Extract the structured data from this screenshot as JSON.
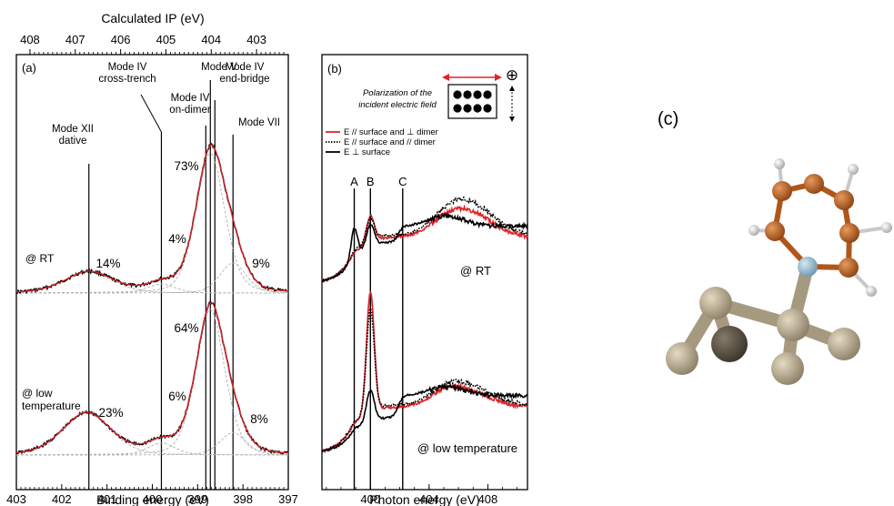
{
  "panel_c": {
    "label": "(c)",
    "colors": {
      "carbon": "#c0601e",
      "hydrogen": "#f2f2f2",
      "nitrogen": "#9fc3d6",
      "silicon": "#bfb297",
      "silicon_dark": "#5a5246"
    }
  },
  "chart_data": [
    {
      "type": "line",
      "panel": "(a)",
      "xlabel": "Binding energy (eV)",
      "top_axis_label": "Calculated IP (eV)",
      "xlim": [
        403,
        397
      ],
      "x_ticks": [
        "403",
        "402",
        "401",
        "400",
        "399",
        "398",
        "397"
      ],
      "top_xlim": [
        408.3,
        402.3
      ],
      "top_ticks": [
        "408",
        "407",
        "406",
        "405",
        "404",
        "403"
      ],
      "modes": [
        {
          "label_lines": [
            "Mode XII",
            "dative"
          ],
          "be": 401.4
        },
        {
          "label_lines": [
            "Mode IV",
            "cross-trench"
          ],
          "be": 399.8
        },
        {
          "label_lines": [
            "Mode IV",
            "on-dimer"
          ],
          "be": 398.82
        },
        {
          "label_lines": [
            "Mode V"
          ],
          "be": 398.72
        },
        {
          "label_lines": [
            "Mode IV",
            "end-bridge"
          ],
          "be": 398.62
        },
        {
          "label_lines": [
            "Mode VII"
          ],
          "be": 398.22
        }
      ],
      "conditions": [
        {
          "name_lines": [
            "@ RT"
          ],
          "percent_labels": [
            "14%",
            "4%",
            "73%",
            "9%"
          ],
          "components": [
            {
              "center": 401.4,
              "height": 0.14
            },
            {
              "center": 399.8,
              "height": 0.06
            },
            {
              "center": 398.72,
              "height": 0.93
            },
            {
              "center": 398.22,
              "height": 0.2
            }
          ]
        },
        {
          "name_lines": [
            "@ low",
            "temperature"
          ],
          "percent_labels": [
            "23%",
            "6%",
            "64%",
            "8%"
          ],
          "components": [
            {
              "center": 401.45,
              "height": 0.28
            },
            {
              "center": 399.8,
              "height": 0.08
            },
            {
              "center": 398.72,
              "height": 0.97
            },
            {
              "center": 398.22,
              "height": 0.15
            }
          ]
        }
      ],
      "series_colors": {
        "data": "#000000",
        "fit": "#e0242a",
        "components": "#b0b0b0"
      }
    },
    {
      "type": "line",
      "panel": "(b)",
      "xlabel": "Photon energy (eV)",
      "xlim": [
        396.7,
        410.7
      ],
      "x_ticks": [
        "400",
        "404",
        "408"
      ],
      "polarization_caption_lines": [
        "Polarization of the",
        "incident electric field"
      ],
      "polarization_symbol": "⊕",
      "peaks": [
        {
          "label": "A",
          "x": 398.9
        },
        {
          "label": "B",
          "x": 400.0
        },
        {
          "label": "C",
          "x": 402.2
        }
      ],
      "legend": [
        {
          "label": "E // surface and ⊥ dimer",
          "color": "#e0242a",
          "style": "solid"
        },
        {
          "label": "E // surface and // dimer",
          "color": "#000000",
          "style": "dotted"
        },
        {
          "label": "E ⊥ surface",
          "color": "#000000",
          "style": "solid"
        }
      ],
      "conditions": [
        {
          "name": "@ RT",
          "series": [
            {
              "pol": "par_perp",
              "A": 0.05,
              "B": 0.35,
              "C": 0.0,
              "step": 0.62,
              "bump": 0.3
            },
            {
              "pol": "par_par",
              "A": 0.05,
              "B": 0.3,
              "C": 0.0,
              "step": 0.65,
              "bump": 0.4
            },
            {
              "pol": "perp",
              "A": 0.42,
              "B": 0.3,
              "C": 0.22,
              "step": 0.55,
              "bump": 0.0
            }
          ]
        },
        {
          "name": "@ low temperature",
          "series": [
            {
              "pol": "par_perp",
              "A": 0.03,
              "B": 1.65,
              "C": 0.0,
              "step": 0.62,
              "bump": 0.18
            },
            {
              "pol": "par_par",
              "A": 0.03,
              "B": 1.4,
              "C": 0.0,
              "step": 0.65,
              "bump": 0.22
            },
            {
              "pol": "perp",
              "A": 0.04,
              "B": 0.42,
              "C": 0.3,
              "step": 0.48,
              "bump": 0.0
            }
          ]
        }
      ]
    }
  ]
}
